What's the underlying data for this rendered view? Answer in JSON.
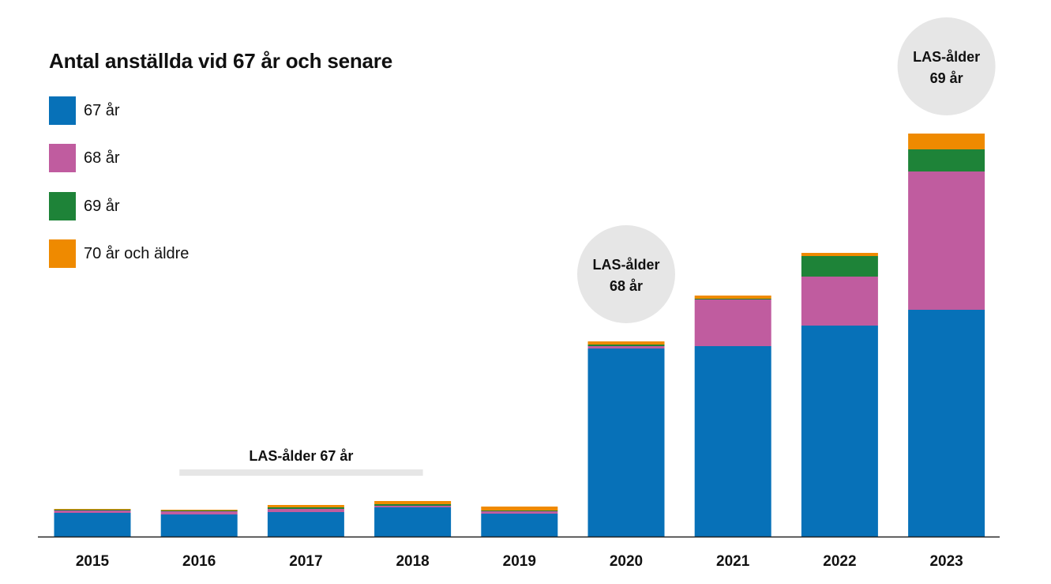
{
  "colors": {
    "67": "#0771b8",
    "68": "#c05c9f",
    "69": "#1e8338",
    "70plus": "#ef8a00",
    "annotation_bg": "#e6e6e6",
    "axis": "#222222"
  },
  "chart_data": {
    "type": "bar",
    "stacked": true,
    "title": "Antal anställda vid 67 år och senare",
    "xlabel": "",
    "ylabel": "",
    "ylim": [
      0,
      510
    ],
    "grid": false,
    "legend_position": "top-left",
    "categories": [
      "2015",
      "2016",
      "2017",
      "2018",
      "2019",
      "2020",
      "2021",
      "2022",
      "2023"
    ],
    "series": [
      {
        "key": "67",
        "name": "67 år",
        "values": [
          30,
          28,
          31,
          37,
          29,
          238,
          241,
          267,
          287
        ]
      },
      {
        "key": "68",
        "name": "68 år",
        "values": [
          3,
          4,
          4,
          2,
          3,
          3,
          59,
          62,
          175
        ]
      },
      {
        "key": "69",
        "name": "69 år",
        "values": [
          1,
          1,
          2,
          2,
          1,
          2,
          1,
          26,
          28
        ]
      },
      {
        "key": "70plus",
        "name": "70 år och äldre",
        "values": [
          1,
          1,
          3,
          4,
          5,
          4,
          4,
          4,
          20
        ]
      }
    ],
    "annotations": [
      {
        "text": "LAS-ålder 67 år",
        "from_category": "2016",
        "to_category": "2018",
        "style": "bar-label"
      },
      {
        "lines": [
          "LAS-ålder",
          "68 år"
        ],
        "category": "2020",
        "style": "circle"
      },
      {
        "lines": [
          "LAS-ålder",
          "69 år"
        ],
        "category": "2023",
        "style": "circle"
      }
    ]
  }
}
